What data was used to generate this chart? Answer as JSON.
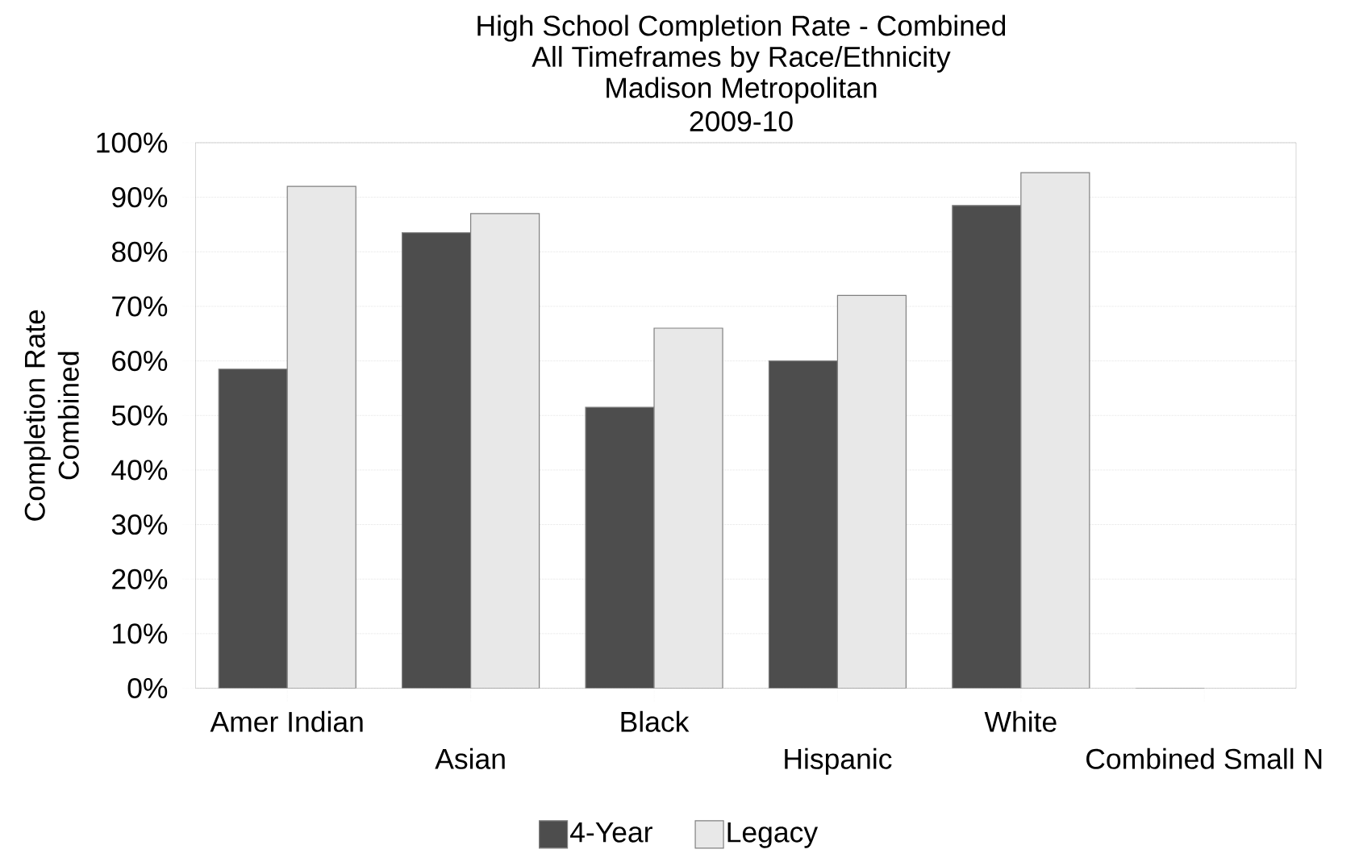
{
  "chart_data": {
    "type": "bar",
    "title": "High School Completion Rate - Combined",
    "subtitle": "All Timeframes by Race/Ethnicity",
    "annotations": [
      "Madison Metropolitan",
      "2009-10"
    ],
    "ylabel": "Completion Rate Combined",
    "categories": [
      "Amer Indian",
      "Asian",
      "Black",
      "Hispanic",
      "White",
      "Combined Small N"
    ],
    "series": [
      {
        "name": "4-Year",
        "color": "#4d4d4d",
        "values": [
          58.5,
          83.5,
          51.5,
          60,
          88.5,
          0
        ]
      },
      {
        "name": "Legacy",
        "color": "#e8e8e8",
        "values": [
          92,
          87,
          66,
          72,
          94.5,
          null
        ]
      }
    ],
    "ylim": [
      0,
      100
    ],
    "yticks": [
      {
        "value": 0,
        "label": "0%"
      },
      {
        "value": 10,
        "label": "10%"
      },
      {
        "value": 20,
        "label": "20%"
      },
      {
        "value": 30,
        "label": "30%"
      },
      {
        "value": 40,
        "label": "40%"
      },
      {
        "value": 50,
        "label": "50%"
      },
      {
        "value": 60,
        "label": "60%"
      },
      {
        "value": 70,
        "label": "70%"
      },
      {
        "value": 80,
        "label": "80%"
      },
      {
        "value": 90,
        "label": "90%"
      },
      {
        "value": 100,
        "label": "100%"
      }
    ],
    "grid": "y",
    "legend": "bottom"
  }
}
